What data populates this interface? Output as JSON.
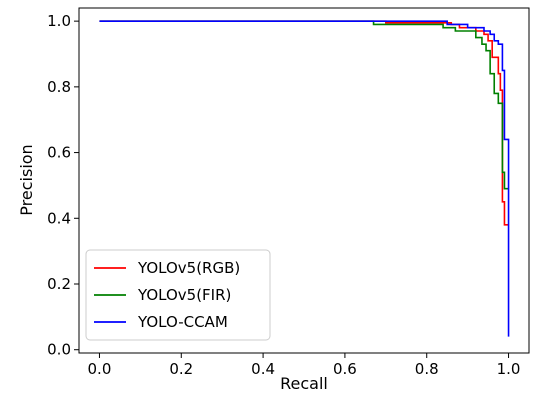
{
  "chart_data": {
    "type": "line",
    "title": "",
    "xlabel": "Recall",
    "ylabel": "Precision",
    "xlim": [
      -0.05,
      1.05
    ],
    "ylim": [
      -0.01,
      1.04
    ],
    "xticks": [
      0.0,
      0.2,
      0.4,
      0.6,
      0.8,
      1.0
    ],
    "yticks": [
      0.0,
      0.2,
      0.4,
      0.6,
      0.8,
      1.0
    ],
    "xtick_labels": [
      "0.0",
      "0.2",
      "0.4",
      "0.6",
      "0.8",
      "1.0"
    ],
    "ytick_labels": [
      "0.0",
      "0.2",
      "0.4",
      "0.6",
      "0.8",
      "1.0"
    ],
    "grid": false,
    "legend_position": "lower-left",
    "series": [
      {
        "name": "YOLOv5(RGB)",
        "color": "#ff0000",
        "points": [
          [
            0.0,
            1.0
          ],
          [
            0.7,
            1.0
          ],
          [
            0.7,
            0.995
          ],
          [
            0.86,
            0.995
          ],
          [
            0.86,
            0.99
          ],
          [
            0.88,
            0.99
          ],
          [
            0.88,
            0.98
          ],
          [
            0.92,
            0.98
          ],
          [
            0.92,
            0.97
          ],
          [
            0.94,
            0.97
          ],
          [
            0.94,
            0.96
          ],
          [
            0.95,
            0.96
          ],
          [
            0.95,
            0.94
          ],
          [
            0.96,
            0.94
          ],
          [
            0.96,
            0.89
          ],
          [
            0.975,
            0.89
          ],
          [
            0.975,
            0.84
          ],
          [
            0.98,
            0.84
          ],
          [
            0.98,
            0.79
          ],
          [
            0.985,
            0.79
          ],
          [
            0.985,
            0.45
          ],
          [
            0.99,
            0.45
          ],
          [
            0.99,
            0.38
          ],
          [
            1.0,
            0.38
          ]
        ]
      },
      {
        "name": "YOLOv5(FIR)",
        "color": "#008000",
        "points": [
          [
            0.0,
            1.0
          ],
          [
            0.67,
            1.0
          ],
          [
            0.67,
            0.99
          ],
          [
            0.84,
            0.99
          ],
          [
            0.84,
            0.98
          ],
          [
            0.87,
            0.98
          ],
          [
            0.87,
            0.97
          ],
          [
            0.92,
            0.97
          ],
          [
            0.92,
            0.95
          ],
          [
            0.935,
            0.95
          ],
          [
            0.935,
            0.93
          ],
          [
            0.945,
            0.93
          ],
          [
            0.945,
            0.91
          ],
          [
            0.955,
            0.91
          ],
          [
            0.955,
            0.84
          ],
          [
            0.965,
            0.84
          ],
          [
            0.965,
            0.78
          ],
          [
            0.975,
            0.78
          ],
          [
            0.975,
            0.75
          ],
          [
            0.985,
            0.75
          ],
          [
            0.985,
            0.54
          ],
          [
            0.99,
            0.54
          ],
          [
            0.99,
            0.49
          ],
          [
            1.0,
            0.49
          ]
        ]
      },
      {
        "name": "YOLO-CCAM",
        "color": "#0000ff",
        "points": [
          [
            0.0,
            1.0
          ],
          [
            0.85,
            1.0
          ],
          [
            0.85,
            0.99
          ],
          [
            0.9,
            0.99
          ],
          [
            0.9,
            0.98
          ],
          [
            0.94,
            0.98
          ],
          [
            0.94,
            0.97
          ],
          [
            0.955,
            0.97
          ],
          [
            0.955,
            0.96
          ],
          [
            0.965,
            0.96
          ],
          [
            0.965,
            0.94
          ],
          [
            0.975,
            0.94
          ],
          [
            0.975,
            0.93
          ],
          [
            0.985,
            0.93
          ],
          [
            0.985,
            0.85
          ],
          [
            0.99,
            0.85
          ],
          [
            0.99,
            0.64
          ],
          [
            1.0,
            0.64
          ],
          [
            1.0,
            0.04
          ]
        ]
      }
    ]
  }
}
